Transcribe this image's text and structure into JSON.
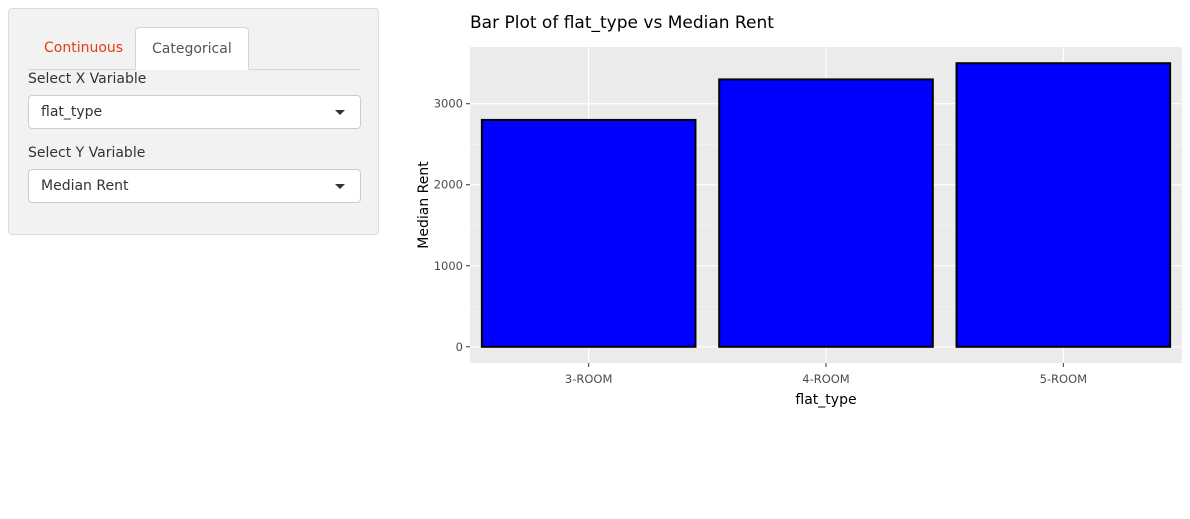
{
  "sidebar": {
    "tabs": [
      {
        "label": "Continuous",
        "active": false
      },
      {
        "label": "Categorical",
        "active": true
      }
    ],
    "x_select": {
      "label": "Select X Variable",
      "value": "flat_type"
    },
    "y_select": {
      "label": "Select Y Variable",
      "value": "Median Rent"
    }
  },
  "chart_data": {
    "type": "bar",
    "title": "Bar Plot of flat_type vs Median Rent",
    "xlabel": "flat_type",
    "ylabel": "Median Rent",
    "categories": [
      "3-ROOM",
      "4-ROOM",
      "5-ROOM"
    ],
    "values": [
      2800,
      3300,
      3500
    ],
    "ylim": [
      -200,
      3700
    ],
    "yticks": [
      0,
      1000,
      2000,
      3000
    ],
    "grid": true,
    "bar_fill": "#0000ff",
    "bar_stroke": "#000000",
    "panel_background": "#ebebeb"
  }
}
